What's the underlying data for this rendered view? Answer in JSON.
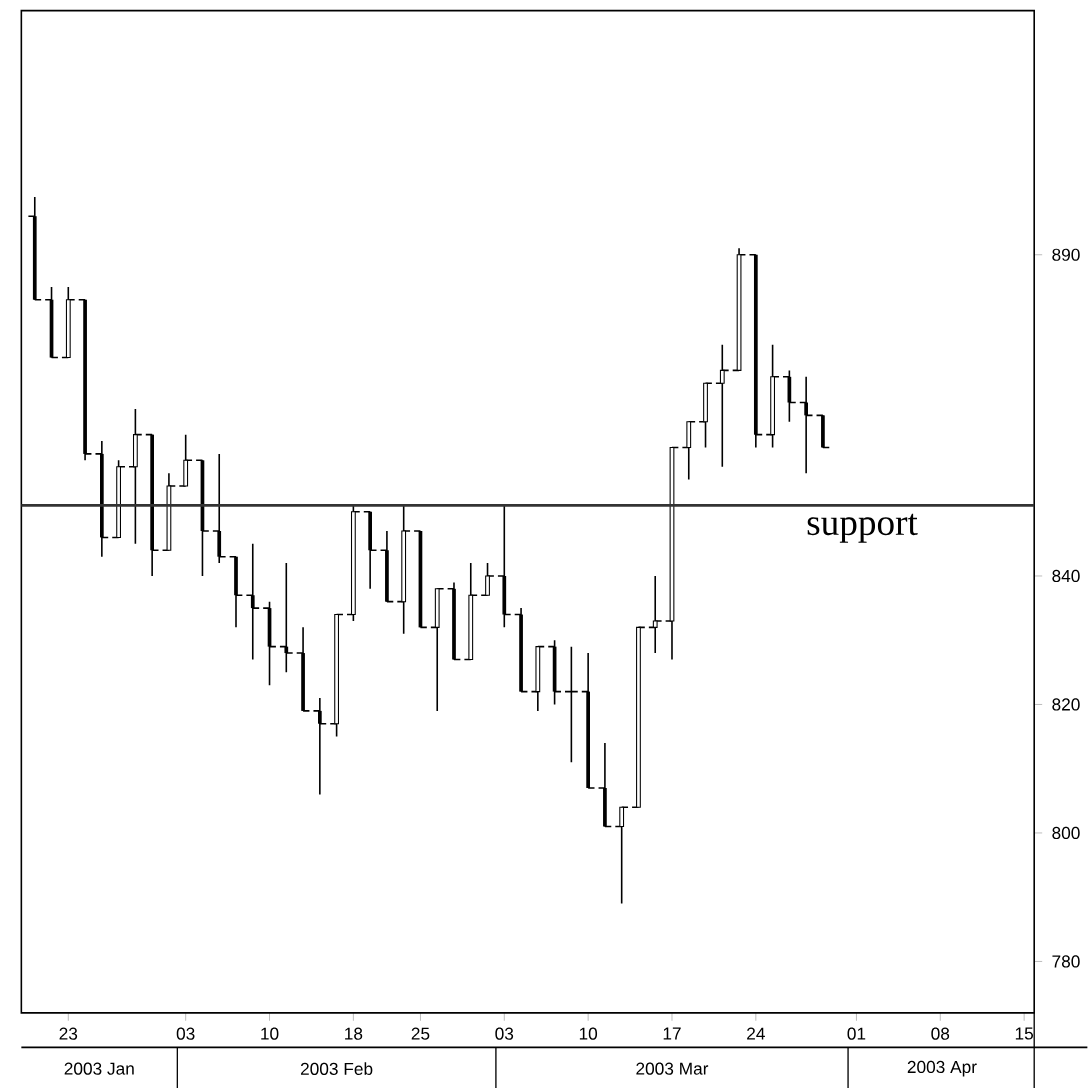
{
  "chart_data": {
    "type": "candlestick",
    "categories": [
      null,
      null,
      "23",
      null,
      null,
      null,
      null,
      null,
      null,
      "03",
      null,
      null,
      null,
      null,
      "10",
      null,
      null,
      null,
      null,
      "18",
      null,
      null,
      null,
      "25",
      null,
      null,
      null,
      null,
      "03",
      null,
      null,
      null,
      null,
      "10",
      null,
      null,
      null,
      null,
      "17",
      null,
      null,
      null,
      null,
      "24",
      null,
      null,
      null,
      null,
      null,
      "01",
      null,
      null,
      null,
      null,
      "08",
      null,
      null,
      null,
      null,
      "15"
    ],
    "ohlc": [
      [
        896,
        899,
        883,
        883
      ],
      [
        883,
        885,
        874,
        874
      ],
      [
        874,
        885,
        874,
        883
      ],
      [
        883,
        883,
        858,
        859
      ],
      [
        859,
        861,
        843,
        846
      ],
      [
        846,
        858,
        846,
        857
      ],
      [
        857,
        866,
        845,
        862
      ],
      [
        862,
        862,
        840,
        844
      ],
      [
        844,
        856,
        844,
        854
      ],
      [
        854,
        862,
        854,
        858
      ],
      [
        858,
        858,
        840,
        847
      ],
      [
        847,
        859,
        842,
        843
      ],
      [
        843,
        843,
        832,
        837
      ],
      [
        837,
        845,
        827,
        835
      ],
      [
        835,
        836,
        823,
        829
      ],
      [
        829,
        842,
        825,
        828
      ],
      [
        828,
        832,
        819,
        819
      ],
      [
        819,
        821,
        806,
        817
      ],
      [
        817,
        834,
        815,
        834
      ],
      [
        834,
        851,
        833,
        850
      ],
      [
        850,
        850,
        838,
        844
      ],
      [
        844,
        847,
        836,
        836
      ],
      [
        836,
        851,
        831,
        847
      ],
      [
        847,
        847,
        832,
        832
      ],
      [
        832,
        838,
        819,
        838
      ],
      [
        838,
        839,
        827,
        827
      ],
      [
        827,
        842,
        827,
        837
      ],
      [
        837,
        842,
        837,
        840
      ],
      [
        840,
        851,
        832,
        834
      ],
      [
        834,
        835,
        822,
        822
      ],
      [
        822,
        829,
        819,
        829
      ],
      [
        829,
        830,
        820,
        822
      ],
      [
        822,
        829,
        811,
        822
      ],
      [
        822,
        828,
        807,
        807
      ],
      [
        807,
        814,
        801,
        801
      ],
      [
        801,
        804,
        789,
        804
      ],
      [
        804,
        832,
        804,
        832
      ],
      [
        832,
        840,
        828,
        833
      ],
      [
        833,
        860,
        827,
        860
      ],
      [
        860,
        864,
        855,
        864
      ],
      [
        864,
        870,
        860,
        870
      ],
      [
        870,
        876,
        857,
        872
      ],
      [
        872,
        891,
        872,
        890
      ],
      [
        890,
        890,
        860,
        862
      ],
      [
        862,
        876,
        860,
        871
      ],
      [
        871,
        872,
        864,
        867
      ],
      [
        867,
        871,
        856,
        865
      ],
      [
        865,
        865,
        860,
        860
      ],
      null,
      null,
      null,
      null,
      null,
      null,
      null,
      null,
      null,
      null,
      null,
      null
    ],
    "color": "#000000",
    "ylim": [
      772,
      928
    ],
    "yticks": [
      780,
      800,
      820,
      840,
      890
    ],
    "ref_lines": [
      {
        "axis": "y",
        "value": 851,
        "label": "support",
        "color": "#333333"
      }
    ],
    "annotations": [
      "2003 Jan",
      "2003 Feb",
      "2003 Mar",
      "2003 Apr"
    ]
  }
}
